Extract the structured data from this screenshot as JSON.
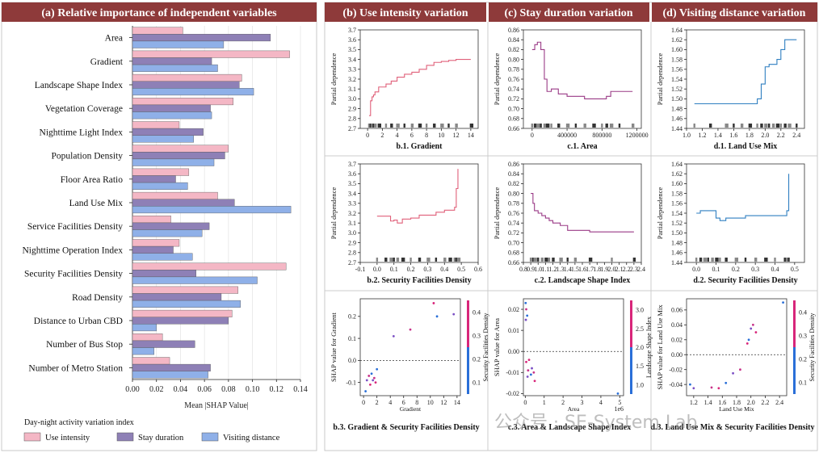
{
  "watermark": "公众号 · SE-System Lab",
  "chart_data": [
    {
      "type": "bar",
      "title": "(a) Relative importance of independent variables",
      "xlabel": "Mean |SHAP Value|",
      "xlim": [
        0,
        0.14
      ],
      "xticks": [
        "0.00",
        "0.02",
        "0.04",
        "0.06",
        "0.08",
        "0.10",
        "0.12",
        "0.14"
      ],
      "categories": [
        "Area",
        "Gradient",
        "Landscape Shape Index",
        "Vegetation Coverage",
        "Nighttime Light Index",
        "Population Density",
        "Floor Area Ratio",
        "Land Use Mix",
        "Service Facilities Density",
        "Nighttime Operation Index",
        "Security Facilities Density",
        "Road Density",
        "Distance to Urban CBD",
        "Number of Bus Stop",
        "Number of Metro Station"
      ],
      "legend_title": "Day-night activity variation index",
      "colors": [
        "#f4b7c5",
        "#8e80b6",
        "#8fb0e8"
      ],
      "series": [
        {
          "name": "Use intensity",
          "values": [
            0.042,
            0.131,
            0.091,
            0.084,
            0.039,
            0.08,
            0.047,
            0.071,
            0.032,
            0.039,
            0.128,
            0.088,
            0.083,
            0.025,
            0.031
          ]
        },
        {
          "name": "Stay duration",
          "values": [
            0.115,
            0.066,
            0.089,
            0.065,
            0.059,
            0.077,
            0.036,
            0.085,
            0.064,
            0.034,
            0.053,
            0.074,
            0.08,
            0.052,
            0.065
          ]
        },
        {
          "name": "Visiting distance",
          "values": [
            0.076,
            0.071,
            0.101,
            0.066,
            0.051,
            0.068,
            0.046,
            0.132,
            0.058,
            0.05,
            0.104,
            0.09,
            0.02,
            0.018,
            0.063
          ]
        }
      ]
    },
    {
      "type": "line",
      "panel_title": "(b) Use intensity variation",
      "title": "b.1. Gradient",
      "ylabel": "Partial dependence",
      "color": "#e0607a",
      "xlim": [
        -1,
        15
      ],
      "ylim": [
        2.7,
        3.7
      ],
      "xticks": [
        "0",
        "2",
        "4",
        "6",
        "8",
        "10",
        "12",
        "14"
      ],
      "yticks": [
        "2.7",
        "2.8",
        "2.9",
        "3.0",
        "3.1",
        "3.2",
        "3.3",
        "3.4",
        "3.5",
        "3.6",
        "3.7"
      ],
      "x": [
        0.2,
        0.4,
        0.6,
        0.8,
        1.0,
        1.5,
        2.5,
        3.2,
        4.0,
        5.0,
        6.0,
        7.0,
        8.0,
        9.0,
        10.0,
        11.0,
        12.0,
        14.0
      ],
      "y": [
        2.83,
        2.98,
        3.02,
        3.04,
        3.07,
        3.12,
        3.15,
        3.18,
        3.22,
        3.25,
        3.27,
        3.3,
        3.34,
        3.37,
        3.38,
        3.39,
        3.4,
        3.4
      ]
    },
    {
      "type": "line",
      "panel_title": "(c) Stay duration variation",
      "title": "c.1. Area",
      "ylabel": "Partial dependence",
      "color": "#9a3a86",
      "xlim": [
        -100000,
        1250000
      ],
      "ylim": [
        0.66,
        0.86
      ],
      "xticks": [
        "0",
        "400000",
        "800000",
        "1200000"
      ],
      "yticks": [
        "0.66",
        "0.68",
        "0.70",
        "0.72",
        "0.74",
        "0.76",
        "0.78",
        "0.80",
        "0.82",
        "0.84",
        "0.86"
      ],
      "x": [
        0,
        30000,
        60000,
        100000,
        140000,
        170000,
        220000,
        300000,
        400000,
        500000,
        600000,
        700000,
        800000,
        850000,
        900000,
        1000000,
        1150000
      ],
      "y": [
        0.82,
        0.83,
        0.835,
        0.82,
        0.76,
        0.735,
        0.74,
        0.73,
        0.725,
        0.725,
        0.72,
        0.72,
        0.72,
        0.725,
        0.735,
        0.735,
        0.735
      ]
    },
    {
      "type": "line",
      "panel_title": "(d) Visiting distance variation",
      "title": "d.1. Land Use Mix",
      "ylabel": "Partial dependence",
      "color": "#2f7fc1",
      "xlim": [
        1.0,
        2.5
      ],
      "ylim": [
        1.44,
        1.64
      ],
      "xticks": [
        "1.0",
        "1.2",
        "1.4",
        "1.6",
        "1.8",
        "2.0",
        "2.2",
        "2.4"
      ],
      "yticks": [
        "1.44",
        "1.46",
        "1.48",
        "1.50",
        "1.52",
        "1.54",
        "1.56",
        "1.58",
        "1.60",
        "1.62",
        "1.64"
      ],
      "x": [
        1.1,
        1.3,
        1.5,
        1.6,
        1.7,
        1.8,
        1.9,
        1.95,
        2.0,
        2.05,
        2.1,
        2.15,
        2.2,
        2.25,
        2.3,
        2.4
      ],
      "y": [
        1.49,
        1.49,
        1.49,
        1.49,
        1.49,
        1.49,
        1.5,
        1.53,
        1.565,
        1.57,
        1.57,
        1.58,
        1.6,
        1.62,
        1.62,
        1.62
      ]
    },
    {
      "type": "line",
      "title": "b.2. Security Facilities Density",
      "ylabel": "Partial dependence",
      "color": "#e0607a",
      "xlim": [
        -0.1,
        0.6
      ],
      "ylim": [
        2.7,
        3.7
      ],
      "xticks": [
        "-0.1",
        "0.0",
        "0.1",
        "0.2",
        "0.3",
        "0.4",
        "0.5",
        "0.6"
      ],
      "yticks": [
        "2.7",
        "2.8",
        "2.9",
        "3.0",
        "3.1",
        "3.2",
        "3.3",
        "3.4",
        "3.5",
        "3.6",
        "3.7"
      ],
      "x": [
        0.0,
        0.05,
        0.08,
        0.1,
        0.12,
        0.15,
        0.2,
        0.25,
        0.3,
        0.35,
        0.4,
        0.43,
        0.46,
        0.47,
        0.48
      ],
      "y": [
        3.17,
        3.17,
        3.12,
        3.13,
        3.1,
        3.14,
        3.15,
        3.18,
        3.18,
        3.21,
        3.23,
        3.23,
        3.26,
        3.45,
        3.65
      ]
    },
    {
      "type": "line",
      "title": "c.2. Landscape Shape Index",
      "ylabel": "Partial dependence",
      "color": "#9a3a86",
      "xlim": [
        0.8,
        2.4
      ],
      "ylim": [
        0.66,
        0.86
      ],
      "xticks": [
        "0.8",
        "0.9",
        "1.0",
        "1.1",
        "1.2",
        "1.3",
        "1.4",
        "1.5",
        "1.6",
        "1.7",
        "1.8",
        "1.9",
        "2.0",
        "2.1",
        "2.2",
        "2.3",
        "2.4"
      ],
      "yticks": [
        "0.66",
        "0.68",
        "0.70",
        "0.72",
        "0.74",
        "0.76",
        "0.78",
        "0.80",
        "0.82",
        "0.84",
        "0.86"
      ],
      "x": [
        0.9,
        0.93,
        0.95,
        1.0,
        1.05,
        1.1,
        1.15,
        1.2,
        1.3,
        1.4,
        1.5,
        1.7,
        2.0,
        2.3
      ],
      "y": [
        0.8,
        0.78,
        0.765,
        0.76,
        0.755,
        0.75,
        0.745,
        0.74,
        0.735,
        0.725,
        0.725,
        0.722,
        0.722,
        0.722
      ]
    },
    {
      "type": "line",
      "title": "d.2. Security Facilities Density",
      "ylabel": "Partial dependence",
      "color": "#2f7fc1",
      "xlim": [
        -0.05,
        0.55
      ],
      "ylim": [
        1.44,
        1.64
      ],
      "xticks": [
        "0.0",
        "0.1",
        "0.2",
        "0.3",
        "0.4",
        "0.5"
      ],
      "yticks": [
        "1.44",
        "1.46",
        "1.48",
        "1.50",
        "1.52",
        "1.54",
        "1.56",
        "1.58",
        "1.60",
        "1.62",
        "1.64"
      ],
      "x": [
        0.0,
        0.02,
        0.04,
        0.06,
        0.08,
        0.1,
        0.12,
        0.15,
        0.2,
        0.25,
        0.3,
        0.35,
        0.4,
        0.45,
        0.46,
        0.47
      ],
      "y": [
        1.54,
        1.545,
        1.545,
        1.545,
        1.545,
        1.53,
        1.525,
        1.53,
        1.53,
        1.535,
        1.535,
        1.535,
        1.535,
        1.535,
        1.545,
        1.62
      ]
    },
    {
      "type": "scatter",
      "title": "b.3. Gradient  & Security Facilities Density",
      "xlabel": "Gradient",
      "ylabel": "SHAP value for Gradient",
      "colorbar_label": "Security Facilities Density",
      "colorbar_ticks": [
        "0.1",
        "0.2",
        "0.3",
        "0.4"
      ],
      "xlim": [
        -0.5,
        14.5
      ],
      "ylim": [
        -0.16,
        0.28
      ],
      "xticks": [
        "0",
        "2",
        "4",
        "6",
        "8",
        "10",
        "12",
        "14"
      ],
      "yticks": [
        "-0.1",
        "0.0",
        "0.1",
        "0.2"
      ],
      "x": [
        0.3,
        0.5,
        0.8,
        1.0,
        1.2,
        1.4,
        1.6,
        1.8,
        2.0,
        4.5,
        7.0,
        10.5,
        11.0,
        13.5
      ],
      "y": [
        -0.14,
        -0.09,
        -0.07,
        -0.11,
        -0.06,
        -0.09,
        -0.08,
        -0.1,
        -0.04,
        0.11,
        0.14,
        0.26,
        0.2,
        0.21
      ]
    },
    {
      "type": "scatter",
      "title": "c.3. Area & Landscape Shape Index",
      "xlabel": "Area",
      "ylabel": "SHAP value for Area",
      "colorbar_label": "Landscape Shape Index",
      "colorbar_ticks": [
        "1.0",
        "1.5",
        "2.0",
        "2.5",
        "3.0"
      ],
      "xlim": [
        -0.1,
        5.2
      ],
      "ylim": [
        -0.021,
        0.025
      ],
      "xticks": [
        "0",
        "1",
        "2",
        "3",
        "4",
        "5"
      ],
      "xoffset": "1e6",
      "yticks": [
        "-0.02",
        "-0.01",
        "0.00",
        "0.01",
        "0.02"
      ],
      "x": [
        0.02,
        0.03,
        0.05,
        0.05,
        0.1,
        0.12,
        0.15,
        0.2,
        0.3,
        0.35,
        0.45,
        0.5,
        4.9
      ],
      "y": [
        0.023,
        0.015,
        0.02,
        -0.005,
        0.017,
        -0.012,
        -0.009,
        -0.004,
        -0.011,
        -0.008,
        -0.01,
        -0.014,
        -0.02
      ]
    },
    {
      "type": "scatter",
      "title": "d.3. Land Use Mix & Security Facilities Density",
      "xlabel": "Land Use Mix",
      "ylabel": "SHAP value for Land Use Mix",
      "colorbar_label": "Security Facilities Density",
      "colorbar_ticks": [
        "0.1",
        "0.2",
        "0.3",
        "0.4"
      ],
      "xlim": [
        1.1,
        2.5
      ],
      "ylim": [
        -0.055,
        0.075
      ],
      "xticks": [
        "1.2",
        "1.4",
        "1.6",
        "1.8",
        "2.0",
        "2.2",
        "2.4"
      ],
      "yticks": [
        "-0.04",
        "-0.02",
        "0.00",
        "0.02",
        "0.04",
        "0.06"
      ],
      "x": [
        1.15,
        1.2,
        1.45,
        1.55,
        1.65,
        1.75,
        1.85,
        1.95,
        1.97,
        2.0,
        2.03,
        2.07,
        2.45
      ],
      "y": [
        -0.04,
        -0.045,
        -0.044,
        -0.045,
        -0.038,
        -0.025,
        -0.02,
        0.015,
        0.02,
        0.035,
        0.04,
        0.03,
        0.07
      ]
    }
  ]
}
